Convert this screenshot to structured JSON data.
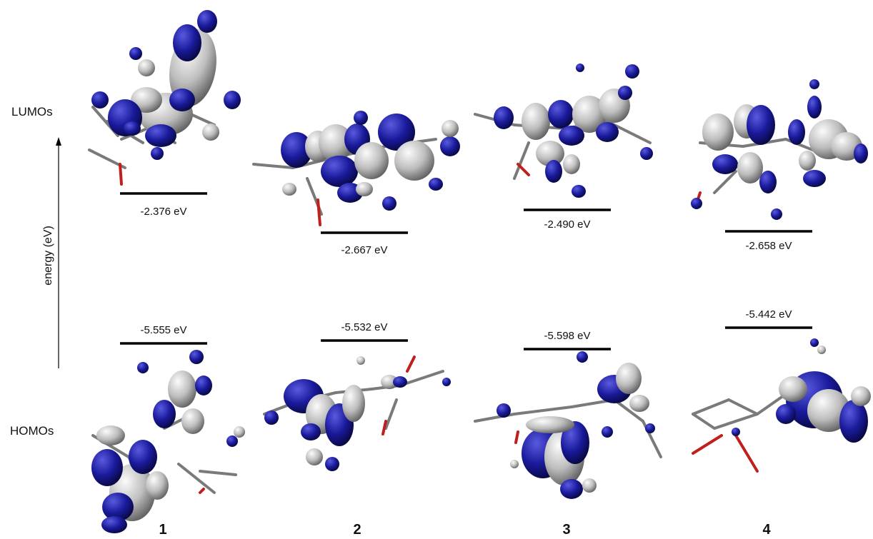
{
  "row_labels": {
    "lumo": "LUMOs",
    "homo": "HOMOs"
  },
  "axis_label": "energy (eV)",
  "colors": {
    "lobe_positive": "#1a1a9c",
    "lobe_negative": "#b9b9b9",
    "bond_carbon": "#7a7a7a",
    "bond_oxygen": "#c0201c",
    "level_line": "#000000"
  },
  "compounds": [
    {
      "number": "1",
      "lumo_energy": "-2.376 eV",
      "homo_energy": "-5.555 eV",
      "lumo_value": -2.376,
      "homo_value": -5.555
    },
    {
      "number": "2",
      "lumo_energy": "-2.667 eV",
      "homo_energy": "-5.532 eV",
      "lumo_value": -2.667,
      "homo_value": -5.532
    },
    {
      "number": "3",
      "lumo_energy": "-2.490 eV",
      "homo_energy": "-5.598 eV",
      "lumo_value": -2.49,
      "homo_value": -5.598
    },
    {
      "number": "4",
      "lumo_energy": "-2.658 eV",
      "homo_energy": "-5.442 eV",
      "lumo_value": -2.658,
      "homo_value": -5.442
    }
  ]
}
